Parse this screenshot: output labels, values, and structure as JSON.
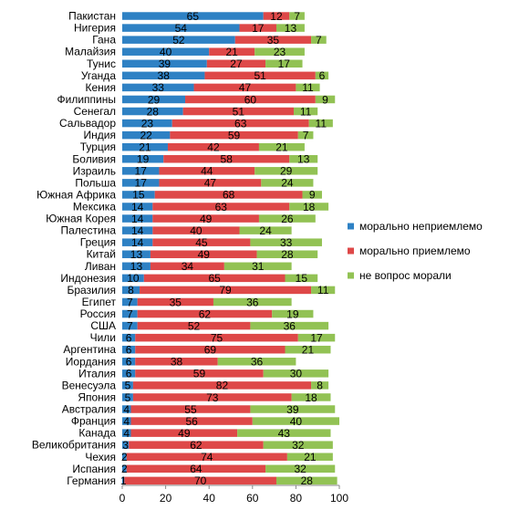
{
  "chart_data": {
    "type": "bar",
    "orientation": "horizontal",
    "stacked": true,
    "xlim": [
      0,
      100
    ],
    "xticks": [
      0,
      20,
      40,
      60,
      80,
      100
    ],
    "grid": false,
    "legend_position": "right",
    "categories": [
      "Пакистан",
      "Нигерия",
      "Гана",
      "Малайзия",
      "Тунис",
      "Уганда",
      "Кения",
      "Филиппины",
      "Сенегал",
      "Сальвадор",
      "Индия",
      "Турция",
      "Боливия",
      "Израиль",
      "Польша",
      "Южная Африка",
      "Мексика",
      "Южная Корея",
      "Палестина",
      "Греция",
      "Китай",
      "Ливан",
      "Индонезия",
      "Бразилия",
      "Египет",
      "Россия",
      "США",
      "Чили",
      "Аргентина",
      "Иордания",
      "Италия",
      "Венесуэла",
      "Япония",
      "Австралия",
      "Франция",
      "Канада",
      "Великобритания",
      "Чехия",
      "Испания",
      "Германия"
    ],
    "series": [
      {
        "name": "морально неприемлемо",
        "color": "#2e81c4",
        "values": [
          65,
          54,
          52,
          40,
          39,
          38,
          33,
          29,
          28,
          23,
          22,
          21,
          19,
          17,
          17,
          15,
          14,
          14,
          14,
          14,
          13,
          13,
          10,
          8,
          7,
          7,
          7,
          6,
          6,
          6,
          6,
          5,
          5,
          4,
          4,
          4,
          3,
          2,
          2,
          1
        ]
      },
      {
        "name": "морально приемлемо",
        "color": "#de4848",
        "values": [
          12,
          17,
          35,
          21,
          27,
          51,
          47,
          60,
          51,
          63,
          59,
          42,
          58,
          44,
          47,
          68,
          63,
          49,
          40,
          45,
          49,
          34,
          65,
          79,
          35,
          62,
          52,
          75,
          69,
          38,
          59,
          82,
          73,
          55,
          56,
          49,
          62,
          74,
          64,
          70
        ]
      },
      {
        "name": "не вопрос морали",
        "color": "#92c254",
        "values": [
          7,
          13,
          7,
          23,
          17,
          6,
          11,
          9,
          11,
          11,
          7,
          21,
          13,
          29,
          24,
          9,
          18,
          26,
          24,
          33,
          28,
          31,
          15,
          11,
          36,
          19,
          36,
          17,
          21,
          36,
          30,
          8,
          18,
          39,
          40,
          43,
          32,
          21,
          32,
          28
        ]
      }
    ]
  }
}
